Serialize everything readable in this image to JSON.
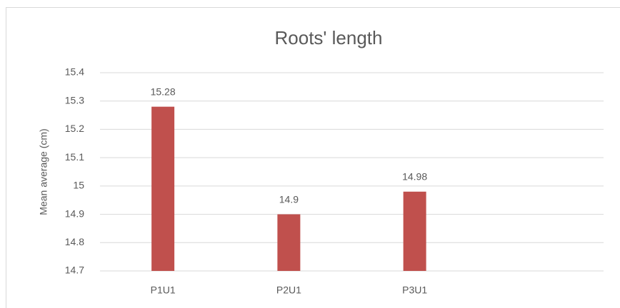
{
  "chart_data": {
    "type": "bar",
    "title": "Roots' length",
    "y_label": "Mean average (cm)",
    "categories": [
      "P1U1",
      "P2U1",
      "P3U1",
      null
    ],
    "values": [
      15.28,
      14.9,
      14.98,
      null
    ],
    "color": "#c0504d",
    "ylim": [
      14.7,
      15.4
    ],
    "yticks": [
      14.7,
      14.8,
      14.9,
      15,
      15.1,
      15.2,
      15.3,
      15.4
    ],
    "grid": true,
    "data_labels": true
  }
}
